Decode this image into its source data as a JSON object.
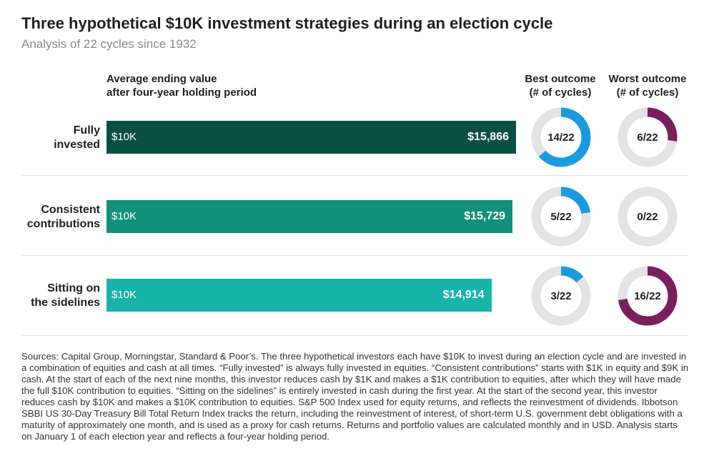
{
  "chart_data": {
    "type": "bar",
    "title": "Three hypothetical $10K investment strategies during an election cycle",
    "subtitle": "Analysis of 22 cycles since 1932",
    "value_header": "Average ending value after four-year holding period",
    "value_header_lines": [
      "Average ending value",
      "after four-year holding period"
    ],
    "best_header_lines": [
      "Best outcome",
      "(# of cycles)"
    ],
    "worst_header_lines": [
      "Worst outcome",
      "(# of cycles)"
    ],
    "start_label": "$10K",
    "xlim": [
      0,
      15866
    ],
    "categories": [
      "Fully invested",
      "Consistent contributions",
      "Sitting on the sidelines"
    ],
    "rows": [
      {
        "label_lines": [
          "Fully",
          "invested"
        ],
        "value": 15866,
        "value_label": "$15,866",
        "color": "#0a4f43",
        "best": {
          "count": 14,
          "total": 22,
          "label": "14/22"
        },
        "worst": {
          "count": 6,
          "total": 22,
          "label": "6/22"
        }
      },
      {
        "label_lines": [
          "Consistent",
          "contributions"
        ],
        "value": 15729,
        "value_label": "$15,729",
        "color": "#12917a",
        "best": {
          "count": 5,
          "total": 22,
          "label": "5/22"
        },
        "worst": {
          "count": 0,
          "total": 22,
          "label": "0/22"
        }
      },
      {
        "label_lines": [
          "Sitting on",
          "the sidelines"
        ],
        "value": 14914,
        "value_label": "$14,914",
        "color": "#18b4aa",
        "best": {
          "count": 3,
          "total": 22,
          "label": "3/22"
        },
        "worst": {
          "count": 16,
          "total": 22,
          "label": "16/22"
        }
      }
    ],
    "colors": {
      "best": "#1a9be0",
      "worst": "#7a1f5c",
      "track": "#e3e3e3"
    }
  },
  "footnote": "Sources: Capital Group, Morningstar, Standard & Poor’s. The three hypothetical investors each have $10K to invest during an election cycle and are invested in a combination of equities and cash at all times. “Fully invested” is always fully invested in equities. “Consistent contributions” starts with $1K in equity and $9K in cash. At the start of each of the next nine months, this investor reduces cash by $1K and makes a $1K contribution to equities, after which they will have made the full $10K contribution to equities. “Sitting on the sidelines” is entirely invested in cash during the first year. At the start of the second year, this investor reduces cash by $10K and makes a $10K contribution to equities. S&P 500 Index used for equity returns, and reflects the reinvestment of dividends. Ibbotson SBBI US 30-Day Treasury Bill Total Return Index tracks the return, including the reinvestment of interest, of short-term U.S. government debt obligations with a maturity of approximately one month, and is used as a proxy for cash returns. Returns and portfolio values are calculated monthly and in USD. Analysis starts on January 1 of each election year and reflects a four-year holding period."
}
